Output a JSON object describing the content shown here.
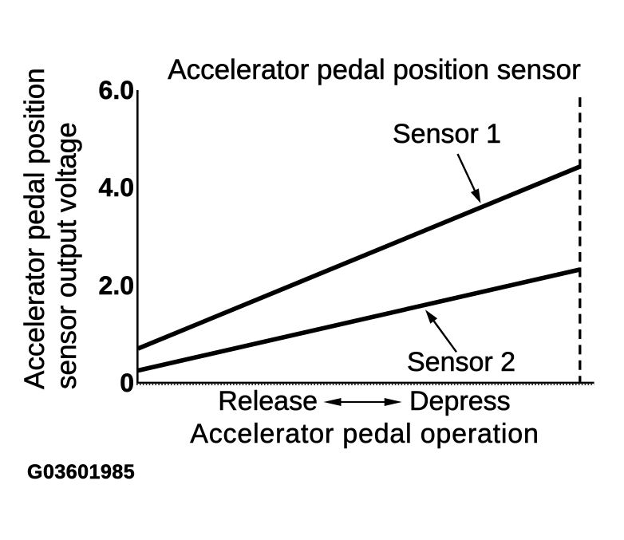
{
  "chart_data": {
    "type": "line",
    "title": "Accelerator pedal position sensor",
    "ylabel": "Accelerator pedal position sensor output voltage",
    "ylabel_lines": [
      "Accelerator pedal position",
      "sensor output voltage"
    ],
    "xlabel": "Accelerator pedal operation",
    "x_axis": {
      "left_label": "Release",
      "right_label": "Depress"
    },
    "yticks": [
      {
        "label": "6.0",
        "value": 6.0
      },
      {
        "label": "4.0",
        "value": 4.0
      },
      {
        "label": "2.0",
        "value": 2.0
      },
      {
        "label": "0",
        "value": 0
      }
    ],
    "ylim": [
      0,
      6.0
    ],
    "grid": false,
    "legend": "inline annotations with arrows",
    "series": [
      {
        "name": "Sensor 1",
        "x": [
          "Release",
          "Depress"
        ],
        "values": [
          0.7,
          4.43
        ]
      },
      {
        "name": "Sensor 2",
        "x": [
          "Release",
          "Depress"
        ],
        "values": [
          0.25,
          2.32
        ]
      }
    ],
    "figure_id": "G03601985"
  }
}
